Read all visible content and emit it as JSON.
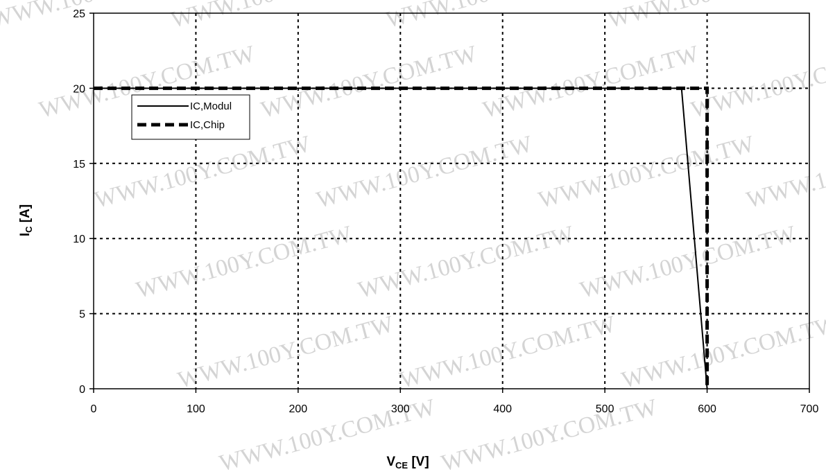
{
  "chart_data": {
    "type": "line",
    "xlabel": {
      "main": "V",
      "sub": "CE",
      "unit": " [V]"
    },
    "ylabel": {
      "main": "I",
      "sub": "C",
      "unit": " [A]"
    },
    "xlim": [
      0,
      700
    ],
    "ylim": [
      0,
      25
    ],
    "xticks": [
      0,
      100,
      200,
      300,
      400,
      500,
      600,
      700
    ],
    "yticks": [
      0,
      5,
      10,
      15,
      20,
      25
    ],
    "grid": true,
    "legend": {
      "placement": "top-left"
    },
    "watermark": "WWW.100Y.COM.TW",
    "series": [
      {
        "name": "IC,Modul",
        "style": "solid",
        "color": "#000000",
        "x": [
          0,
          575,
          600
        ],
        "y": [
          20,
          20,
          0
        ]
      },
      {
        "name": "IC,Chip",
        "style": "dashed",
        "color": "#000000",
        "x": [
          0,
          598,
          600,
          600
        ],
        "y": [
          20,
          20,
          20,
          0
        ]
      }
    ]
  }
}
